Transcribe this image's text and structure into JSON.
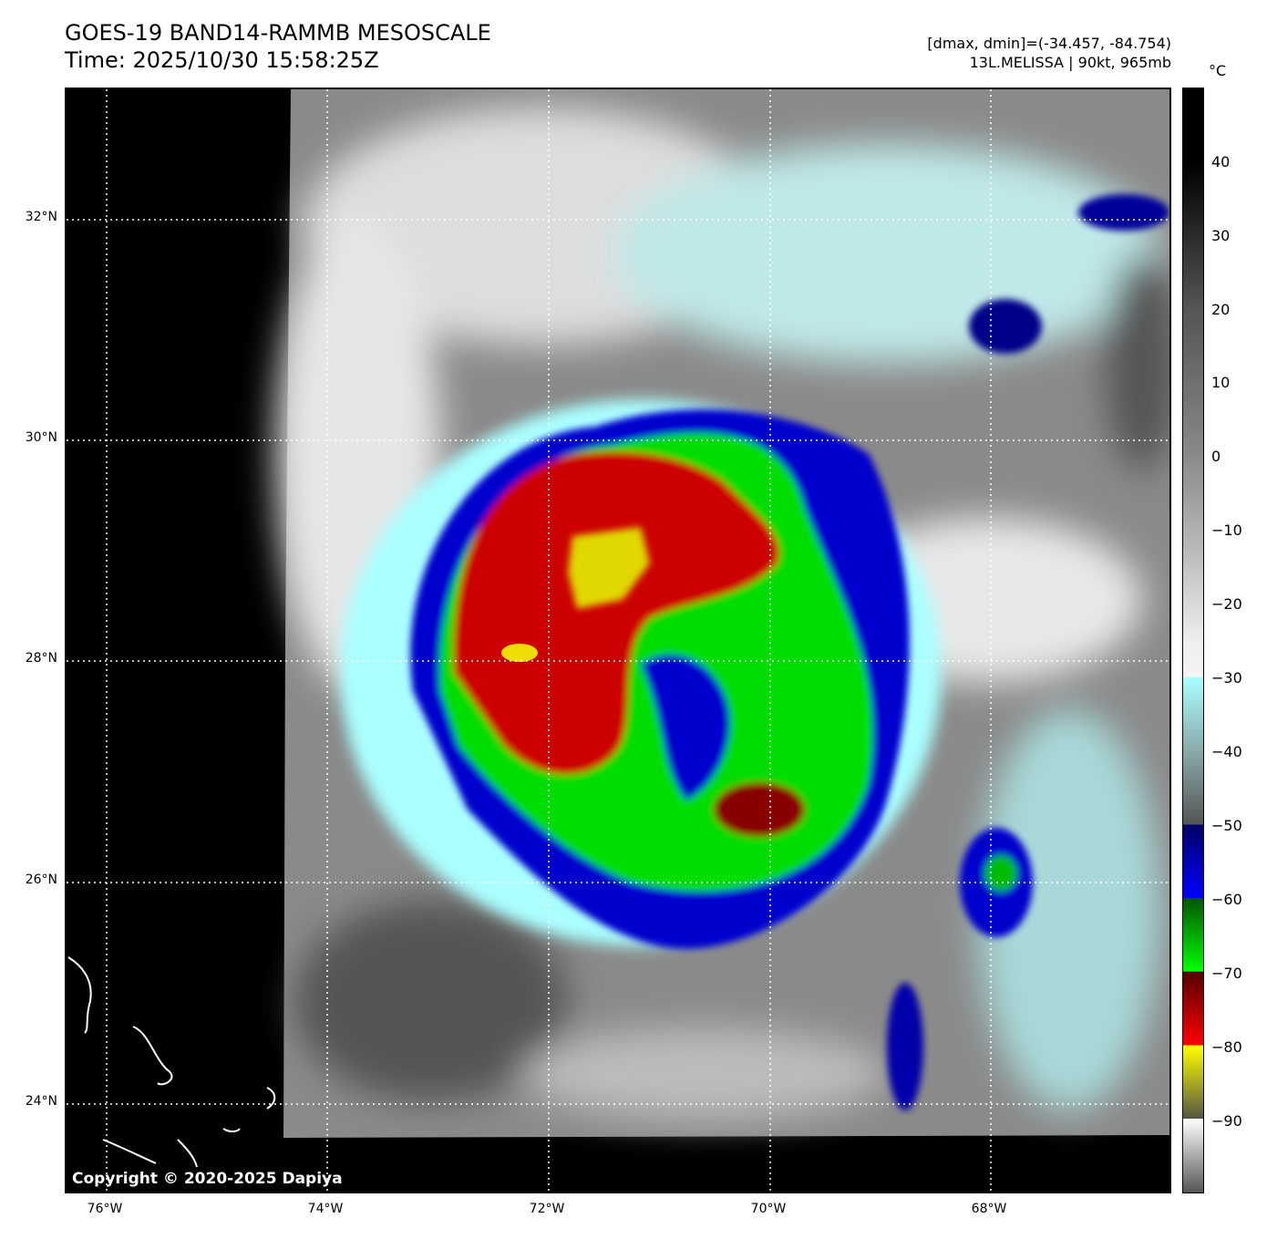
{
  "header": {
    "title": "GOES-19 BAND14-RAMMB MESOSCALE",
    "time": "Time: 2025/10/30 15:58:25Z",
    "range": "[dmax, dmin]=(-34.457, -84.754)",
    "storm": "13L.MELISSA | 90kt, 965mb"
  },
  "colorbar": {
    "unit": "°C",
    "ticks": [
      "40",
      "30",
      "20",
      "10",
      "0",
      "−10",
      "−20",
      "−30",
      "−40",
      "−50",
      "−60",
      "−70",
      "−80",
      "−90"
    ]
  },
  "axes": {
    "lat": [
      "32°N",
      "30°N",
      "28°N",
      "26°N",
      "24°N"
    ],
    "lon": [
      "76°W",
      "74°W",
      "72°W",
      "70°W",
      "68°W"
    ]
  },
  "copyright": "Copyright © 2020-2025 Dapiya",
  "colors": {
    "cyan": "#aaffff",
    "blue": "#0000dd",
    "green": "#00cc00",
    "red": "#cc0000",
    "yellow": "#dddd00"
  }
}
